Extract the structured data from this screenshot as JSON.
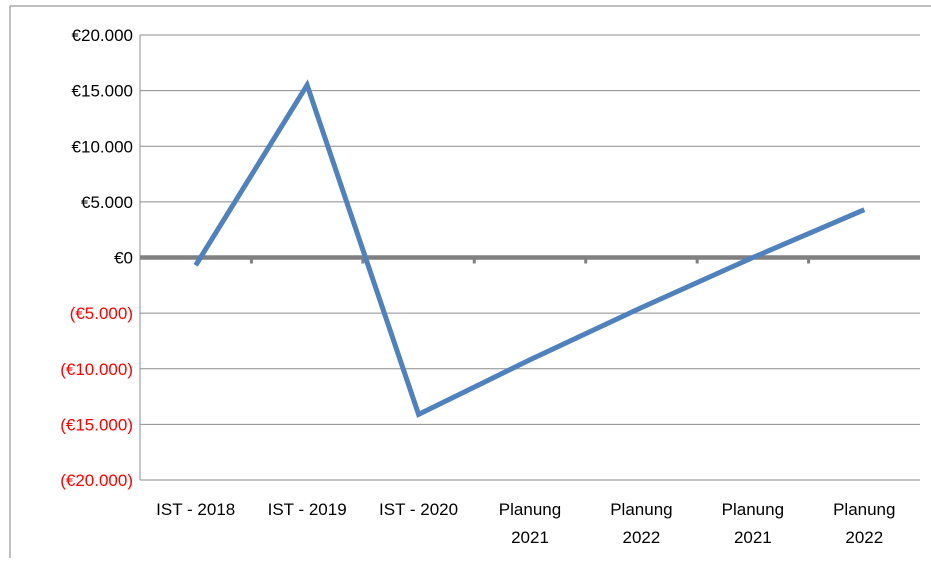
{
  "chart_data": {
    "type": "line",
    "categories": [
      [
        "IST - 2018"
      ],
      [
        "IST - 2019"
      ],
      [
        "IST - 2020"
      ],
      [
        "Planung",
        "2021"
      ],
      [
        "Planung",
        "2022"
      ],
      [
        "Planung",
        "2021"
      ],
      [
        "Planung",
        "2022"
      ]
    ],
    "series": [
      {
        "values": [
          -700,
          15500,
          -14100,
          -9200,
          -4500,
          0,
          4300
        ]
      }
    ],
    "ylim": [
      -20000,
      20000
    ],
    "yticks": [
      {
        "value": 20000,
        "label": "€20.000"
      },
      {
        "value": 15000,
        "label": "€15.000"
      },
      {
        "value": 10000,
        "label": "€10.000"
      },
      {
        "value": 5000,
        "label": "€5.000"
      },
      {
        "value": 0,
        "label": "€0"
      },
      {
        "value": -5000,
        "label": "(€5.000)"
      },
      {
        "value": -10000,
        "label": "(€10.000)"
      },
      {
        "value": -15000,
        "label": "(€15.000)"
      },
      {
        "value": -20000,
        "label": "(€20.000)"
      }
    ],
    "grid": true,
    "legend": "none",
    "colors": {
      "line": "#4f81bd",
      "negative_label": "#ff0000",
      "positive_label": "#000000",
      "gridline": "#8c8c8c",
      "zero_axis": "#808080"
    }
  }
}
